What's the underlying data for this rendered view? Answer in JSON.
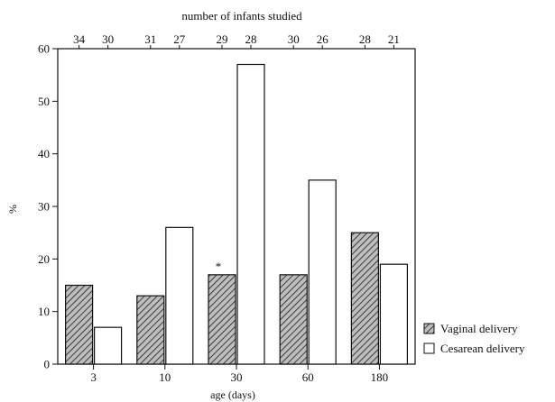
{
  "chart_data": {
    "type": "bar",
    "top_title": "number of infants studied",
    "xlabel": "age (days)",
    "ylabel": "%",
    "ylim": [
      0,
      60
    ],
    "yticks": [
      "0",
      "10",
      "20",
      "30",
      "40",
      "50",
      "60"
    ],
    "categories": [
      "3",
      "10",
      "30",
      "60",
      "180"
    ],
    "series": [
      {
        "name": "Vaginal delivery",
        "values": [
          15,
          13,
          17,
          17,
          25
        ],
        "infants_studied": [
          "34",
          "31",
          "29",
          "30",
          "28"
        ],
        "fill": "hatched"
      },
      {
        "name": "Cesarean delivery",
        "values": [
          7,
          26,
          57,
          35,
          19
        ],
        "infants_studied": [
          "30",
          "27",
          "28",
          "26",
          "21"
        ],
        "fill": "white"
      }
    ],
    "annotations": [
      {
        "text": "*",
        "category": "30",
        "series": "Vaginal delivery"
      }
    ],
    "grid": false,
    "legend_position": "bottom-right",
    "colors": {
      "line": "#111111",
      "hatch_bg": "#bdbdbd",
      "hatch_line": "#1a1a1a",
      "bar_white": "#ffffff"
    }
  }
}
